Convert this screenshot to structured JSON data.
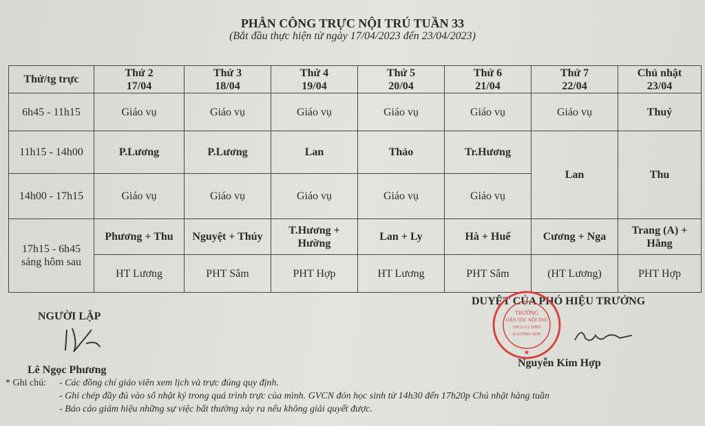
{
  "title": "PHÂN CÔNG TRỰC NỘI TRÚ TUẦN 33",
  "subtitle": "(Bắt đầu thực hiện từ ngày 17/04/2023 đến 23/04/2023)",
  "table": {
    "corner": "Thứ/tg trực",
    "days": [
      {
        "d": "Thứ 2",
        "date": "17/04"
      },
      {
        "d": "Thứ 3",
        "date": "18/04"
      },
      {
        "d": "Thứ 4",
        "date": "19/04"
      },
      {
        "d": "Thứ 5",
        "date": "20/04"
      },
      {
        "d": "Thứ 6",
        "date": "21/04"
      },
      {
        "d": "Thứ 7",
        "date": "22/04"
      },
      {
        "d": "Chủ nhật",
        "date": "23/04"
      }
    ],
    "slots": [
      "6h45 - 11h15",
      "11h15 - 14h00",
      "14h00 - 17h15",
      "17h15 - 6h45 sáng hôm sau"
    ],
    "r1": [
      "Giáo vụ",
      "Giáo vụ",
      "Giáo vụ",
      "Giáo vụ",
      "Giáo vụ",
      "Giáo vụ",
      "Thuý"
    ],
    "r2": [
      "P.Lương",
      "P.Lương",
      "Lan",
      "Thảo",
      "Tr.Hương",
      "Lan",
      "Thu"
    ],
    "r3": [
      "Giáo vụ",
      "Giáo vụ",
      "Giáo vụ",
      "Giáo vụ",
      "Giáo vụ"
    ],
    "r4a": [
      "Phương + Thu",
      "Nguyệt + Thúy",
      "T.Hương + Hường",
      "Lan + Ly",
      "Hà + Huế",
      "Cương + Nga",
      "Trang (A) + Hằng"
    ],
    "r4b": [
      "HT Lương",
      "PHT Sâm",
      "PHT Hợp",
      "HT Lương",
      "PHT Sâm",
      "(HT Lương)",
      "PHT Hợp"
    ]
  },
  "creator_label": "NGƯỜI LẬP",
  "creator_name": "Lê Ngọc Phương",
  "approver_label": "DUYỆT CỦA PHÓ HIỆU TRƯỞNG",
  "approver_name": "Nguyễn Kim Hợp",
  "stamp_text": "TRƯỜNG DÂN TỘC NỘI TRÚ TRUNG HỌC CƠ SỞ VÀ TRUNG HỌC PHỔ THÔNG H.LƯƠNG SƠN",
  "stamp_color": "#d8413f",
  "notes": {
    "label": "* Ghi chú:",
    "items": [
      "- Các đồng chí giáo viên xem lịch và trực đúng quy định.",
      "- Ghi chép đầy đủ vào sổ nhật ký trong quá trình trực của mình. GVCN đón học sinh từ 14h30 đến 17h20p Chủ nhật hàng tuần",
      "- Báo cáo giám hiệu những sự việc bất thường xảy ra nếu không giải quyết được."
    ]
  }
}
